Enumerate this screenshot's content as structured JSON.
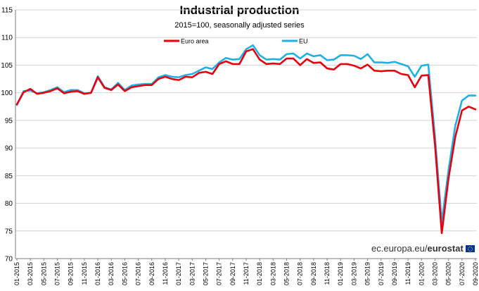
{
  "chart_data": {
    "type": "line",
    "title": "Industrial production",
    "subtitle": "2015=100, seasonally adjusted series",
    "xlabel": "",
    "ylabel": "",
    "ylim": [
      70,
      115
    ],
    "yticks": [
      70,
      75,
      80,
      85,
      90,
      95,
      100,
      105,
      110,
      115
    ],
    "grid": true,
    "legend_position": "top-center",
    "x": [
      "01-2015",
      "02-2015",
      "03-2015",
      "04-2015",
      "05-2015",
      "06-2015",
      "07-2015",
      "08-2015",
      "09-2015",
      "10-2015",
      "11-2015",
      "12-2015",
      "01-2016",
      "02-2016",
      "03-2016",
      "04-2016",
      "05-2016",
      "06-2016",
      "07-2016",
      "08-2016",
      "09-2016",
      "10-2016",
      "11-2016",
      "12-2016",
      "01-2017",
      "02-2017",
      "03-2017",
      "04-2017",
      "05-2017",
      "06-2017",
      "07-2017",
      "08-2017",
      "09-2017",
      "10-2017",
      "11-2017",
      "12-2017",
      "01-2018",
      "02-2018",
      "03-2018",
      "04-2018",
      "05-2018",
      "06-2018",
      "07-2018",
      "08-2018",
      "09-2018",
      "10-2018",
      "11-2018",
      "12-2018",
      "01-2019",
      "02-2019",
      "03-2019",
      "04-2019",
      "05-2019",
      "06-2019",
      "07-2019",
      "08-2019",
      "09-2019",
      "10-2019",
      "11-2019",
      "12-2019",
      "01-2020",
      "02-2020",
      "03-2020",
      "04-2020",
      "05-2020",
      "06-2020",
      "07-2020",
      "08-2020",
      "09-2020"
    ],
    "x_tick_labels": [
      "01-2015",
      "03-2015",
      "05-2015",
      "07-2015",
      "09-2015",
      "11-2015",
      "01-2016",
      "03-2016",
      "05-2016",
      "07-2016",
      "09-2016",
      "11-2016",
      "01-2017",
      "03-2017",
      "05-2017",
      "07-2017",
      "09-2017",
      "11-2017",
      "01-2018",
      "03-2018",
      "05-2018",
      "07-2018",
      "09-2018",
      "11-2018",
      "01-2019",
      "03-2019",
      "05-2019",
      "07-2019",
      "09-2019",
      "11-2019",
      "01-2020",
      "03-2020",
      "05-2020",
      "07-2020",
      "09-2020"
    ],
    "series": [
      {
        "name": "Euro area",
        "color": "#e8000e",
        "values": [
          97.9,
          100.1,
          100.7,
          99.8,
          100.0,
          100.3,
          100.8,
          99.9,
          100.2,
          100.3,
          99.8,
          100.0,
          102.8,
          100.9,
          100.5,
          101.5,
          100.3,
          101.0,
          101.2,
          101.4,
          101.4,
          102.5,
          102.9,
          102.5,
          102.3,
          102.9,
          102.8,
          103.6,
          103.8,
          103.4,
          105.2,
          105.7,
          105.2,
          105.2,
          107.5,
          107.9,
          106.0,
          105.2,
          105.3,
          105.2,
          106.2,
          106.2,
          105.0,
          106.1,
          105.4,
          105.5,
          104.4,
          104.2,
          105.2,
          105.2,
          104.9,
          104.4,
          105.1,
          104.0,
          103.9,
          104.0,
          104.0,
          103.4,
          103.2,
          101.0,
          103.1,
          103.2,
          90.5,
          74.6,
          84.5,
          92.0,
          96.8,
          97.5,
          97.0
        ]
      },
      {
        "name": "EU",
        "color": "#1fb1e6",
        "values": [
          97.8,
          100.3,
          100.4,
          99.9,
          100.1,
          100.5,
          101.0,
          100.1,
          100.5,
          100.5,
          99.9,
          100.0,
          103.0,
          101.0,
          100.6,
          101.8,
          100.5,
          101.3,
          101.5,
          101.6,
          101.6,
          102.8,
          103.2,
          102.9,
          102.8,
          103.2,
          103.4,
          104.0,
          104.6,
          104.3,
          105.5,
          106.3,
          106.0,
          106.1,
          107.9,
          108.6,
          106.8,
          106.0,
          106.1,
          106.0,
          107.0,
          107.1,
          106.2,
          107.1,
          106.6,
          106.8,
          105.9,
          106.0,
          106.8,
          106.8,
          106.7,
          106.1,
          107.0,
          105.5,
          105.5,
          105.4,
          105.6,
          105.2,
          104.8,
          102.9,
          104.9,
          105.1,
          92.0,
          76.6,
          86.0,
          94.0,
          98.6,
          99.5,
          99.5
        ]
      }
    ]
  },
  "source": {
    "domain": "ec.europa.eu/",
    "brand": "eurostat"
  },
  "colors": {
    "grid": "#d4d4d4",
    "axis": "#7f7f7f",
    "flag": "#003399"
  }
}
